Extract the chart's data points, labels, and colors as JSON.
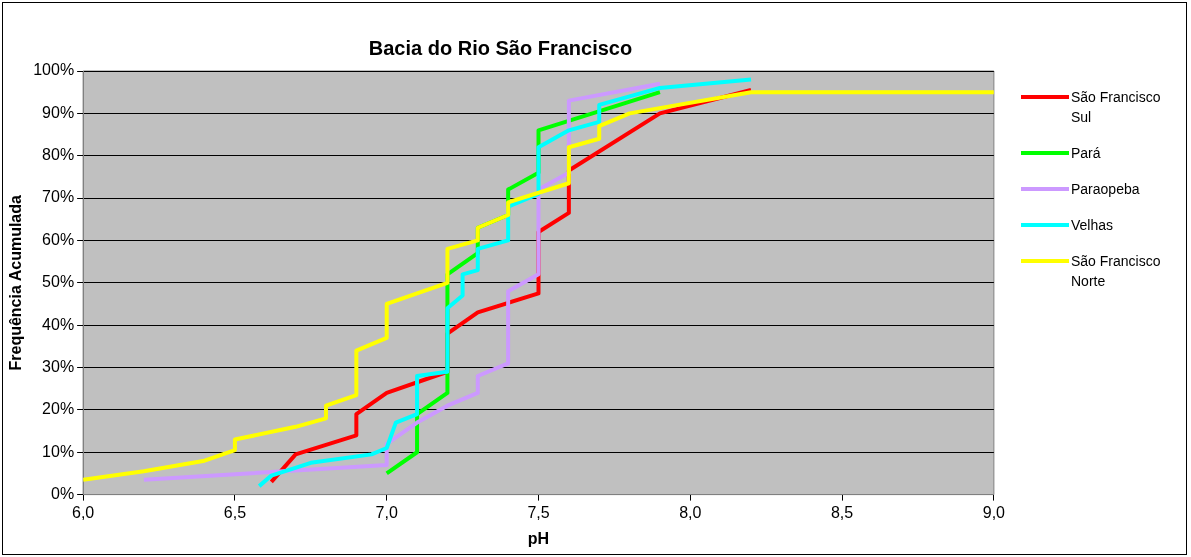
{
  "chart_data": {
    "type": "line",
    "title": "Bacia do Rio São Francisco",
    "xlabel": "pH",
    "ylabel": "Frequência Acumulada",
    "xlim": [
      6,
      9
    ],
    "xticks": [
      {
        "value": 6,
        "label": "6,0"
      },
      {
        "value": 6.5,
        "label": "6,5"
      },
      {
        "value": 7,
        "label": "7,0"
      },
      {
        "value": 7.5,
        "label": "7,5"
      },
      {
        "value": 8,
        "label": "8,0"
      },
      {
        "value": 8.5,
        "label": "8,5"
      },
      {
        "value": 9,
        "label": "9,0"
      }
    ],
    "ylim": [
      0,
      100
    ],
    "yticks": [
      {
        "value": 0,
        "label": "0%"
      },
      {
        "value": 10,
        "label": "10%"
      },
      {
        "value": 20,
        "label": "20%"
      },
      {
        "value": 30,
        "label": "30%"
      },
      {
        "value": 40,
        "label": "40%"
      },
      {
        "value": 50,
        "label": "50%"
      },
      {
        "value": 60,
        "label": "60%"
      },
      {
        "value": 70,
        "label": "70%"
      },
      {
        "value": 80,
        "label": "80%"
      },
      {
        "value": 90,
        "label": "90%"
      },
      {
        "value": 100,
        "label": "100%"
      }
    ],
    "grid": "y",
    "legend": "right",
    "marker": "none",
    "line_style": "solid",
    "series": [
      {
        "name": "São Francisco Sul",
        "color": "#ff0000",
        "x": [
          6.62,
          6.7,
          6.9,
          6.9,
          7.0,
          7.2,
          7.2,
          7.3,
          7.5,
          7.5,
          7.6,
          7.6,
          7.9,
          8.2
        ],
        "values": [
          3,
          9.5,
          14,
          19,
          24,
          29,
          38,
          43,
          47.5,
          62,
          66.5,
          76.5,
          90,
          95.5
        ]
      },
      {
        "name": "Pará",
        "color": "#00ff00",
        "x": [
          7.0,
          7.1,
          7.1,
          7.2,
          7.2,
          7.3,
          7.3,
          7.4,
          7.4,
          7.5,
          7.5,
          7.9
        ],
        "values": [
          5,
          10,
          19,
          24,
          52,
          57,
          63,
          66,
          72,
          76,
          86,
          95
        ]
      },
      {
        "name": "Paraopeba",
        "color": "#cc99ff",
        "x": [
          6.2,
          7.0,
          7.0,
          7.1,
          7.2,
          7.3,
          7.3,
          7.4,
          7.4,
          7.5,
          7.5,
          7.6,
          7.6,
          7.9
        ],
        "values": [
          3.5,
          7,
          12,
          17,
          21,
          24,
          28,
          31,
          48,
          52,
          72,
          76,
          93,
          97
        ]
      },
      {
        "name": "Velhas",
        "color": "#00ffff",
        "x": [
          6.58,
          6.62,
          6.75,
          6.95,
          7.0,
          7.03,
          7.1,
          7.1,
          7.2,
          7.2,
          7.25,
          7.25,
          7.3,
          7.3,
          7.4,
          7.4,
          7.5,
          7.5,
          7.6,
          7.7,
          7.7,
          7.9,
          8.2
        ],
        "values": [
          2,
          4.5,
          7.5,
          9.5,
          11,
          17,
          19,
          28,
          29,
          44,
          47,
          52,
          53,
          58,
          60,
          68,
          71,
          82,
          86,
          88,
          92,
          96,
          98
        ]
      },
      {
        "name": "São Francisco Norte",
        "color": "#ffff00",
        "x": [
          6.0,
          6.2,
          6.4,
          6.5,
          6.5,
          6.7,
          6.8,
          6.8,
          6.9,
          6.9,
          7.0,
          7.0,
          7.2,
          7.2,
          7.3,
          7.3,
          7.4,
          7.4,
          7.6,
          7.6,
          7.7,
          7.7,
          7.8,
          8.2,
          9.0
        ],
        "values": [
          3.5,
          5.5,
          8,
          10.5,
          13,
          16,
          18,
          21,
          23.5,
          34,
          37,
          45,
          50,
          58,
          60,
          63,
          66,
          69,
          73.5,
          82,
          84,
          87,
          90,
          95,
          95
        ]
      }
    ]
  }
}
